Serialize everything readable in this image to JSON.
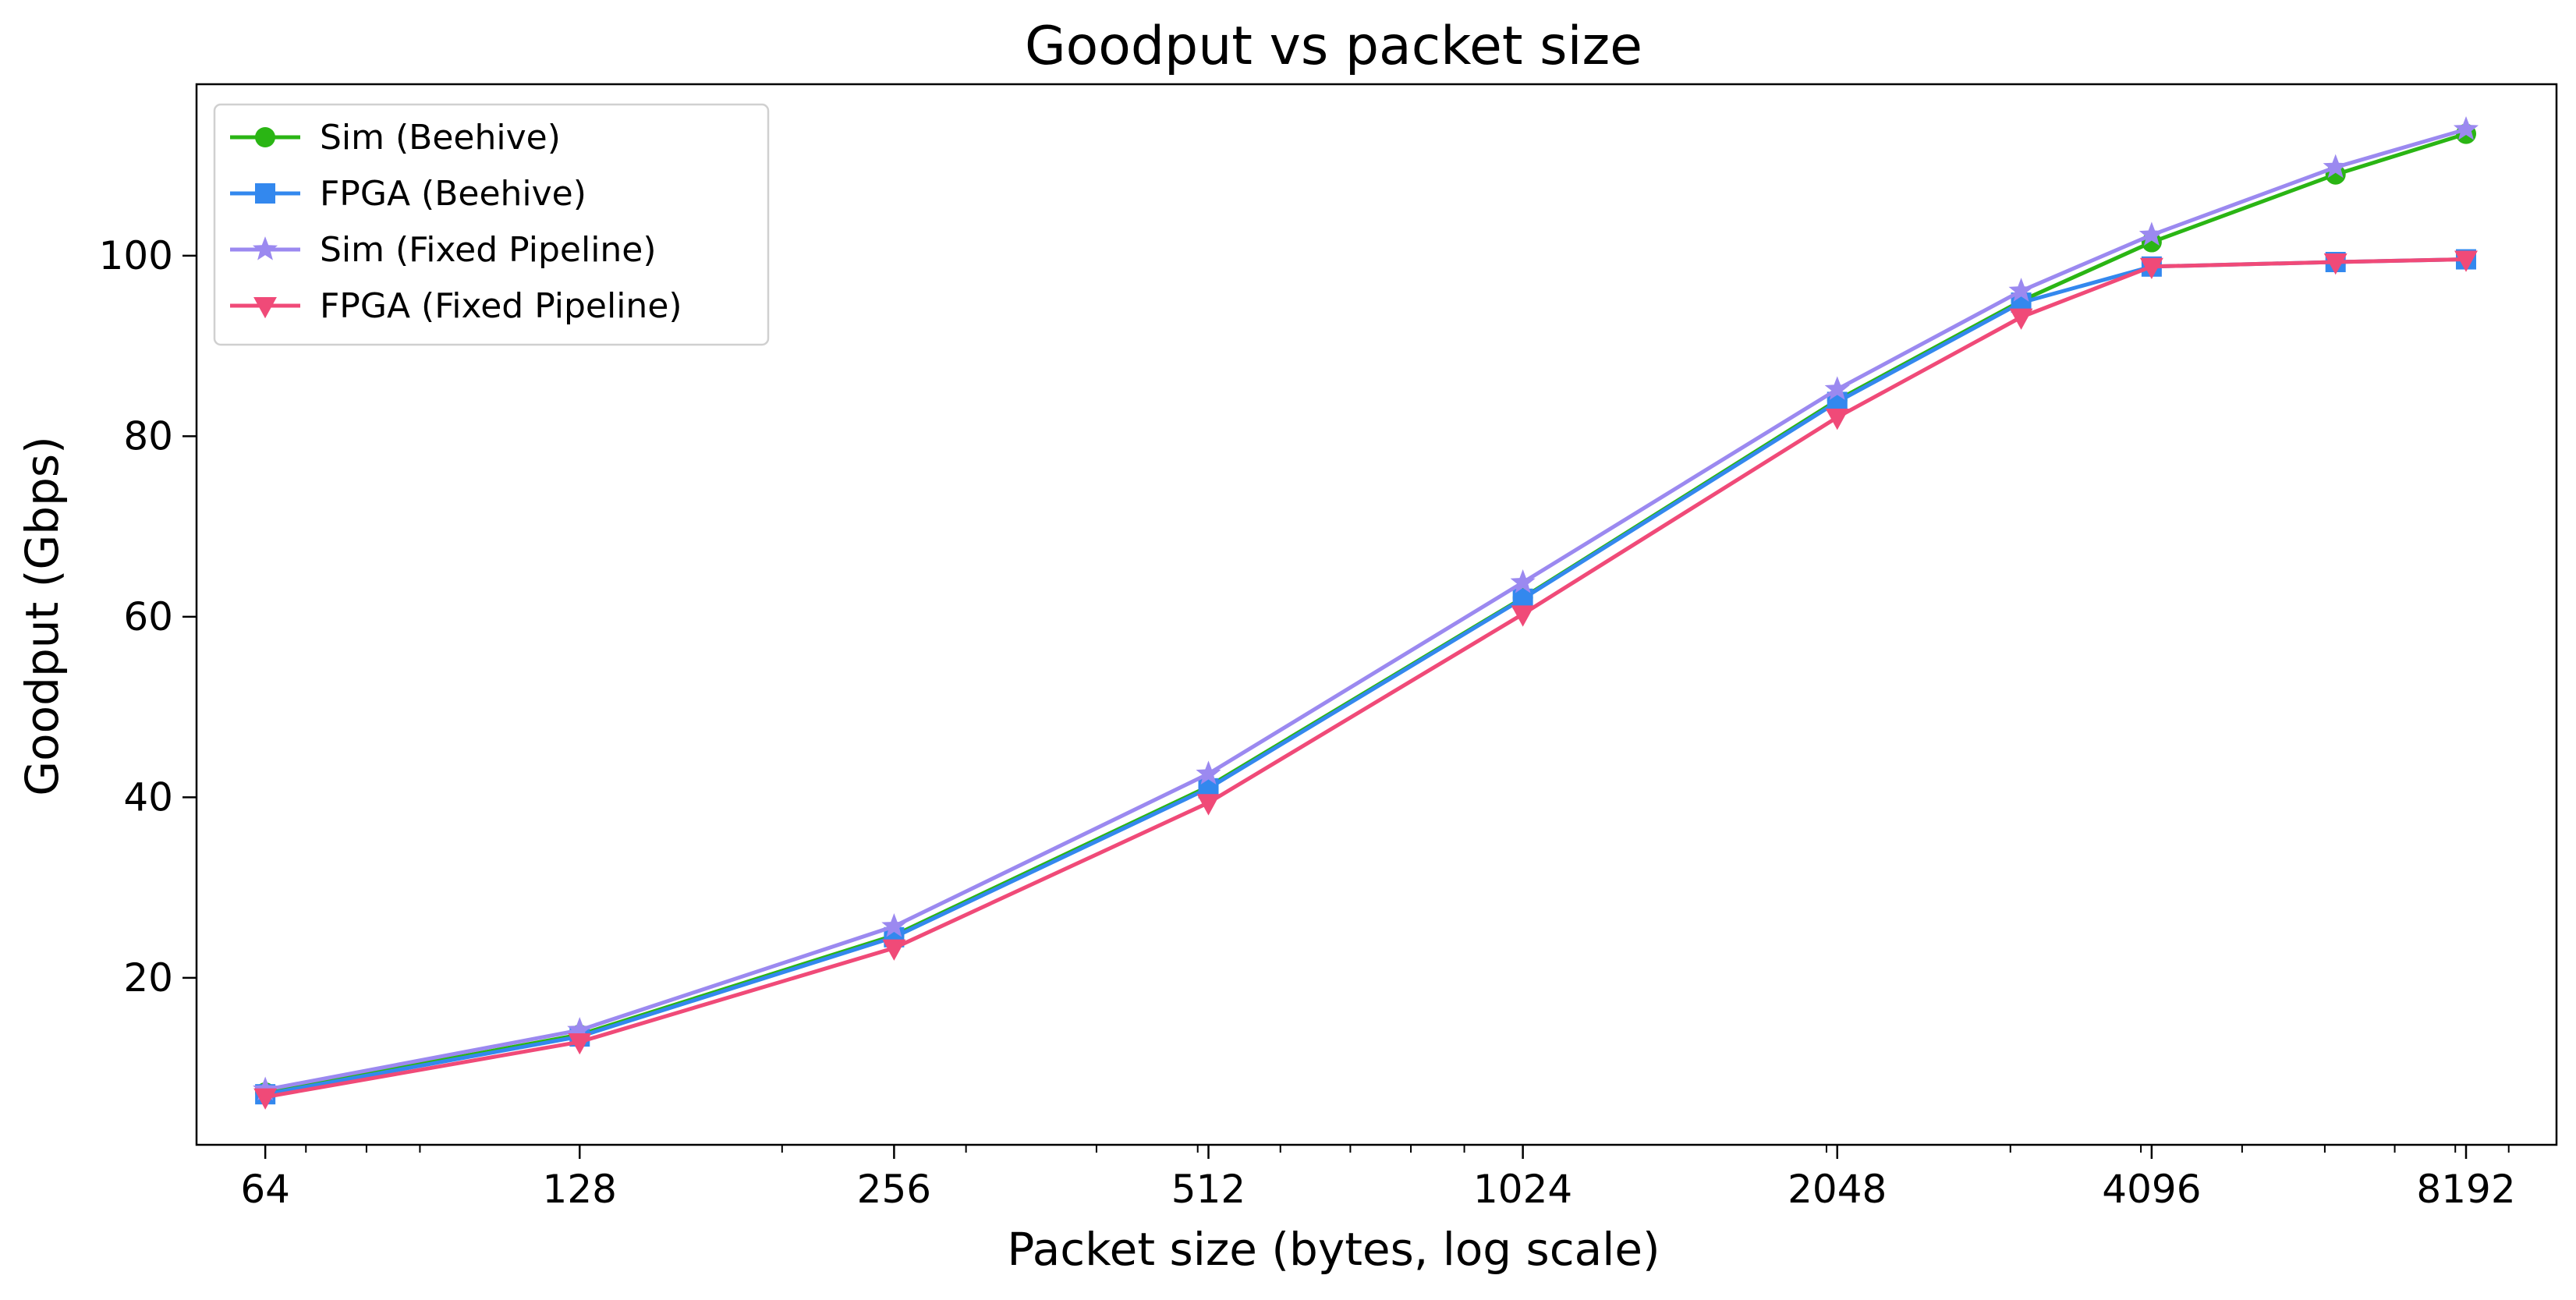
{
  "chart_data": {
    "type": "line",
    "title": "Goodput vs packet size",
    "xlabel": "Packet size (bytes, log scale)",
    "ylabel": "Goodput (Gbps)",
    "x_scale": "log2",
    "xlim": [
      55,
      10000
    ],
    "ylim": [
      1.5,
      119
    ],
    "xticks": [
      64,
      128,
      256,
      512,
      1024,
      2048,
      4096,
      8192
    ],
    "xtick_labels": [
      "64",
      "128",
      "256",
      "512",
      "1024",
      "2048",
      "4096",
      "8192"
    ],
    "yticks": [
      20,
      40,
      60,
      80,
      100
    ],
    "ytick_labels": [
      "20",
      "40",
      "60",
      "80",
      "100"
    ],
    "grid": false,
    "legend_position": "top-left",
    "x": [
      64,
      128,
      256,
      512,
      1024,
      2048,
      3072,
      4096,
      6144,
      8192
    ],
    "series": [
      {
        "name": "Sim (Beehive)",
        "color": "#2ab514",
        "marker": "circle",
        "values": [
          7.3,
          13.7,
          24.7,
          41.2,
          62.1,
          84.0,
          95.0,
          101.5,
          109.0,
          113.5
        ]
      },
      {
        "name": "FPGA (Beehive)",
        "color": "#3388ee",
        "marker": "square",
        "values": [
          7.1,
          13.5,
          24.5,
          41.0,
          62.0,
          83.8,
          94.8,
          98.8,
          99.3,
          99.6
        ]
      },
      {
        "name": "Sim (Fixed Pipeline)",
        "color": "#9b89f0",
        "marker": "star",
        "values": [
          7.6,
          14.2,
          25.7,
          42.6,
          63.8,
          85.2,
          96.1,
          102.3,
          109.8,
          114.0
        ]
      },
      {
        "name": "FPGA (Fixed Pipeline)",
        "color": "#f04a78",
        "marker": "triangle-down",
        "values": [
          6.8,
          12.9,
          23.3,
          39.4,
          60.3,
          82.1,
          93.2,
          98.8,
          99.3,
          99.6
        ]
      }
    ]
  }
}
